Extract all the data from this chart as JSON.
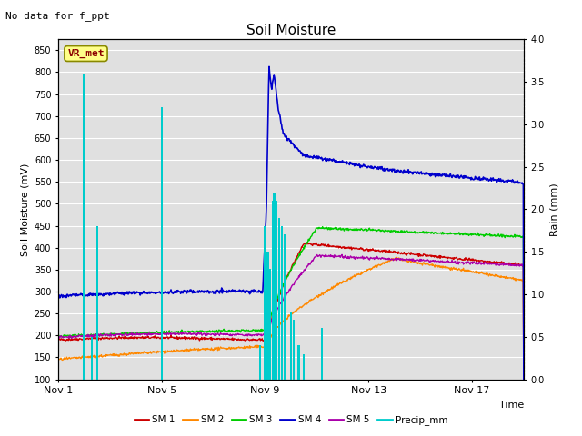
{
  "title": "Soil Moisture",
  "xlabel": "Time",
  "ylabel_left": "Soil Moisture (mV)",
  "ylabel_right": "Rain (mm)",
  "top_left_text": "No data for f_ppt",
  "annotation_box": "VR_met",
  "ylim_left": [
    100,
    875
  ],
  "ylim_right": [
    0.0,
    4.0
  ],
  "yticks_left": [
    100,
    150,
    200,
    250,
    300,
    350,
    400,
    450,
    500,
    550,
    600,
    650,
    700,
    750,
    800,
    850
  ],
  "yticks_right": [
    0.0,
    0.5,
    1.0,
    1.5,
    2.0,
    2.5,
    3.0,
    3.5,
    4.0
  ],
  "background_color": "#e0e0e0",
  "colors": {
    "SM1": "#cc0000",
    "SM2": "#ff8800",
    "SM3": "#00cc00",
    "SM4": "#0000cc",
    "SM5": "#aa00aa",
    "Precip": "#00cccc"
  },
  "legend_labels": [
    "SM 1",
    "SM 2",
    "SM 3",
    "SM 4",
    "SM 5",
    "Precip_mm"
  ],
  "precip_times": [
    1.0,
    1.3,
    1.5,
    4.0,
    7.8,
    8.0,
    8.1,
    8.2,
    8.3,
    8.35,
    8.45,
    8.55,
    8.65,
    8.75,
    9.0,
    9.1,
    9.3,
    9.5,
    10.2
  ],
  "precip_vals": [
    3.6,
    0.5,
    1.8,
    3.2,
    0.4,
    1.8,
    1.5,
    1.3,
    2.1,
    2.2,
    2.1,
    1.9,
    1.8,
    1.7,
    0.8,
    0.7,
    0.4,
    0.3,
    0.6
  ],
  "n_days": 18,
  "xlim": [
    0,
    18
  ],
  "xtick_positions": [
    0,
    4,
    8,
    12,
    16
  ],
  "xtick_labels": [
    "Nov 1",
    "Nov 5",
    "Nov 9",
    "Nov 13",
    "Nov 17"
  ]
}
